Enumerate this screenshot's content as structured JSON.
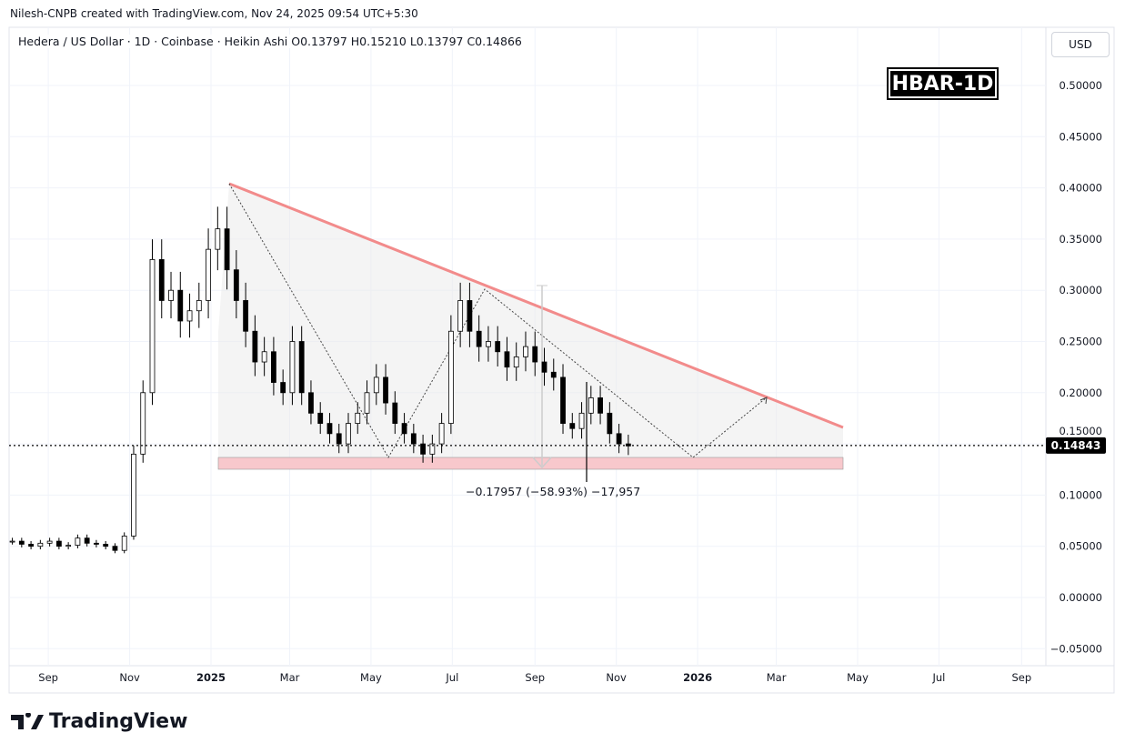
{
  "header": {
    "credit": "Nilesh-CNPB created with TradingView.com, Nov 24, 2025 09:54 UTC+5:30",
    "legend": "Hedera / US Dollar · 1D · Coinbase · Heikin Ashi  O0.13797  H0.15210  L0.13797  C0.14866",
    "currency": "USD",
    "badge": "HBAR-1D"
  },
  "footer": {
    "logo": "TradingView"
  },
  "chart_data": {
    "type": "candlestick",
    "symbol": "HBAR/USD",
    "interval": "1D",
    "style": "Heikin Ashi",
    "ohlc_last": {
      "open": 0.13797,
      "high": 0.1521,
      "low": 0.13797,
      "close": 0.14866
    },
    "current_price_label": "0.14843",
    "y_ticks": [
      "0.50000",
      "0.45000",
      "0.40000",
      "0.35000",
      "0.30000",
      "0.25000",
      "0.20000",
      "0.15000",
      "0.10000",
      "0.05000",
      "0.00000",
      "−0.05000"
    ],
    "y_tick_values": [
      0.5,
      0.45,
      0.4,
      0.35,
      0.3,
      0.25,
      0.2,
      0.15,
      0.1,
      0.05,
      0,
      -0.05
    ],
    "ylim": [
      -0.06,
      0.54
    ],
    "x_ticks": [
      {
        "label": "Sep",
        "date": "2024-09-01"
      },
      {
        "label": "Nov",
        "date": "2024-11-01"
      },
      {
        "label": "2025",
        "date": "2025-01-01"
      },
      {
        "label": "Mar",
        "date": "2025-03-01"
      },
      {
        "label": "May",
        "date": "2025-05-01"
      },
      {
        "label": "Jul",
        "date": "2025-07-01"
      },
      {
        "label": "Sep",
        "date": "2025-09-01"
      },
      {
        "label": "Nov",
        "date": "2025-11-01"
      },
      {
        "label": "2026",
        "date": "2026-01-01"
      },
      {
        "label": "Mar",
        "date": "2026-03-01"
      },
      {
        "label": "May",
        "date": "2026-05-01"
      },
      {
        "label": "Jul",
        "date": "2026-07-01"
      },
      {
        "label": "Sep",
        "date": "2026-09-01"
      }
    ],
    "series_start": "2024-08-05",
    "series_step_days": 7,
    "closes": [
      0.055,
      0.052,
      0.05,
      0.053,
      0.055,
      0.05,
      0.051,
      0.058,
      0.053,
      0.052,
      0.05,
      0.046,
      0.06,
      0.14,
      0.2,
      0.33,
      0.29,
      0.3,
      0.27,
      0.28,
      0.29,
      0.34,
      0.36,
      0.32,
      0.29,
      0.26,
      0.23,
      0.24,
      0.21,
      0.2,
      0.25,
      0.2,
      0.18,
      0.17,
      0.16,
      0.15,
      0.17,
      0.18,
      0.2,
      0.215,
      0.19,
      0.17,
      0.16,
      0.15,
      0.14,
      0.15,
      0.17,
      0.26,
      0.29,
      0.26,
      0.245,
      0.25,
      0.24,
      0.225,
      0.235,
      0.245,
      0.23,
      0.22,
      0.215,
      0.17,
      0.165,
      0.18,
      0.195,
      0.18,
      0.16,
      0.15,
      0.148
    ],
    "annotations": {
      "measure": "−0.17957 (−58.93%) −17,957",
      "resistance_color": "#f28b8b",
      "support_color": "#f8c8cc"
    }
  }
}
